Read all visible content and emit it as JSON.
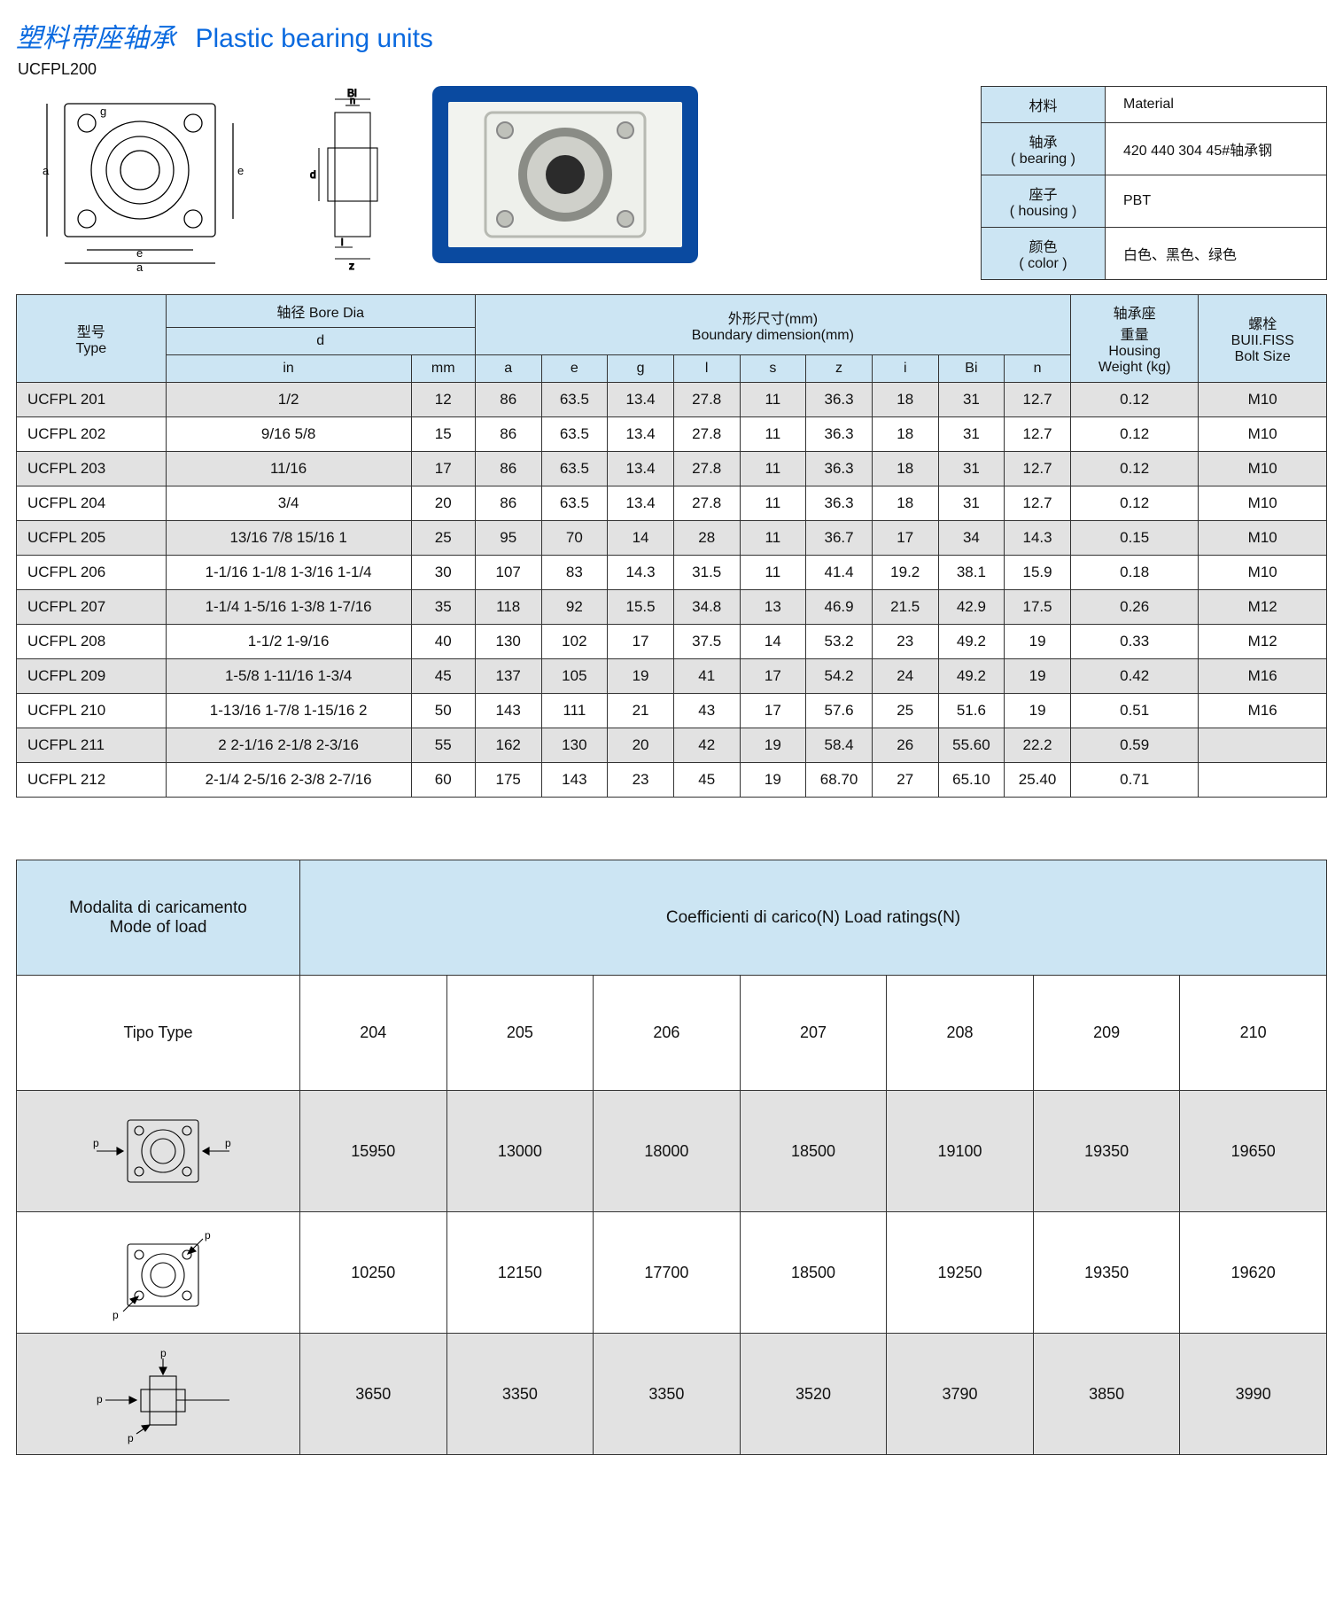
{
  "title": {
    "cn": "塑料带座轴承",
    "en": "Plastic bearing units"
  },
  "subtype": "UCFPL200",
  "material_table": {
    "head_cn": "材料",
    "head_en": "Material",
    "rows": [
      {
        "lab_cn": "轴承",
        "lab_en": "( bearing )",
        "val": "420 440 304  45#轴承钢"
      },
      {
        "lab_cn": "座子",
        "lab_en": "( housing )",
        "val": "PBT"
      },
      {
        "lab_cn": "颜色",
        "lab_en": "( color )",
        "val": "白色、黑色、绿色"
      }
    ]
  },
  "spec_headers": {
    "type": "型号\nType",
    "bore": "轴径 Bore Dia",
    "bore_d": "d",
    "bore_in": "in",
    "bore_mm": "mm",
    "boundary_cn": "外形尺寸(mm)",
    "boundary_en": "Boundary dimension(mm)",
    "dims": [
      "a",
      "e",
      "g",
      "l",
      "s",
      "z",
      "i",
      "Bi",
      "n"
    ],
    "wt_cn": "轴承座\n重量",
    "wt_en": "Housing\nWeight (kg)",
    "bolt_cn": "螺栓",
    "bolt_en": "BUII.FISS\nBolt Size"
  },
  "spec_rows": [
    {
      "type": "UCFPL 201",
      "in": "1/2",
      "mm": "12",
      "a": "86",
      "e": "63.5",
      "g": "13.4",
      "l": "27.8",
      "s": "11",
      "z": "36.3",
      "i": "18",
      "bi": "31",
      "n": "12.7",
      "wt": "0.12",
      "bolt": "M10"
    },
    {
      "type": "UCFPL 202",
      "in": "9/16  5/8",
      "mm": "15",
      "a": "86",
      "e": "63.5",
      "g": "13.4",
      "l": "27.8",
      "s": "11",
      "z": "36.3",
      "i": "18",
      "bi": "31",
      "n": "12.7",
      "wt": "0.12",
      "bolt": "M10"
    },
    {
      "type": "UCFPL 203",
      "in": "11/16",
      "mm": "17",
      "a": "86",
      "e": "63.5",
      "g": "13.4",
      "l": "27.8",
      "s": "11",
      "z": "36.3",
      "i": "18",
      "bi": "31",
      "n": "12.7",
      "wt": "0.12",
      "bolt": "M10"
    },
    {
      "type": "UCFPL 204",
      "in": "3/4",
      "mm": "20",
      "a": "86",
      "e": "63.5",
      "g": "13.4",
      "l": "27.8",
      "s": "11",
      "z": "36.3",
      "i": "18",
      "bi": "31",
      "n": "12.7",
      "wt": "0.12",
      "bolt": "M10"
    },
    {
      "type": "UCFPL 205",
      "in": "13/16  7/8  15/16  1",
      "mm": "25",
      "a": "95",
      "e": "70",
      "g": "14",
      "l": "28",
      "s": "11",
      "z": "36.7",
      "i": "17",
      "bi": "34",
      "n": "14.3",
      "wt": "0.15",
      "bolt": "M10"
    },
    {
      "type": "UCFPL 206",
      "in": "1-1/16  1-1/8  1-3/16  1-1/4",
      "mm": "30",
      "a": "107",
      "e": "83",
      "g": "14.3",
      "l": "31.5",
      "s": "11",
      "z": "41.4",
      "i": "19.2",
      "bi": "38.1",
      "n": "15.9",
      "wt": "0.18",
      "bolt": "M10"
    },
    {
      "type": "UCFPL 207",
      "in": "1-1/4  1-5/16  1-3/8  1-7/16",
      "mm": "35",
      "a": "118",
      "e": "92",
      "g": "15.5",
      "l": "34.8",
      "s": "13",
      "z": "46.9",
      "i": "21.5",
      "bi": "42.9",
      "n": "17.5",
      "wt": "0.26",
      "bolt": "M12"
    },
    {
      "type": "UCFPL 208",
      "in": "1-1/2  1-9/16",
      "mm": "40",
      "a": "130",
      "e": "102",
      "g": "17",
      "l": "37.5",
      "s": "14",
      "z": "53.2",
      "i": "23",
      "bi": "49.2",
      "n": "19",
      "wt": "0.33",
      "bolt": "M12"
    },
    {
      "type": "UCFPL 209",
      "in": "1-5/8  1-11/16  1-3/4",
      "mm": "45",
      "a": "137",
      "e": "105",
      "g": "19",
      "l": "41",
      "s": "17",
      "z": "54.2",
      "i": "24",
      "bi": "49.2",
      "n": "19",
      "wt": "0.42",
      "bolt": "M16"
    },
    {
      "type": "UCFPL 210",
      "in": "1-13/16  1-7/8  1-15/16  2",
      "mm": "50",
      "a": "143",
      "e": "111",
      "g": "21",
      "l": "43",
      "s": "17",
      "z": "57.6",
      "i": "25",
      "bi": "51.6",
      "n": "19",
      "wt": "0.51",
      "bolt": "M16"
    },
    {
      "type": "UCFPL 211",
      "in": "2  2-1/16  2-1/8  2-3/16",
      "mm": "55",
      "a": "162",
      "e": "130",
      "g": "20",
      "l": "42",
      "s": "19",
      "z": "58.4",
      "i": "26",
      "bi": "55.60",
      "n": "22.2",
      "wt": "0.59",
      "bolt": ""
    },
    {
      "type": "UCFPL 212",
      "in": "2-1/4  2-5/16  2-3/8  2-7/16",
      "mm": "60",
      "a": "175",
      "e": "143",
      "g": "23",
      "l": "45",
      "s": "19",
      "z": "68.70",
      "i": "27",
      "bi": "65.10",
      "n": "25.40",
      "wt": "0.71",
      "bolt": ""
    }
  ],
  "load": {
    "mode_lab_it": "Modalita di caricamento",
    "mode_lab_en": "Mode of load",
    "coef_lab": "Coefficienti di carico(N) Load ratings(N)",
    "tipo_lab": "Tipo Type",
    "columns": [
      "204",
      "205",
      "206",
      "207",
      "208",
      "209",
      "210"
    ],
    "rows": [
      {
        "style": "axial",
        "vals": [
          "15950",
          "13000",
          "18000",
          "18500",
          "19100",
          "19350",
          "19650"
        ]
      },
      {
        "style": "diag",
        "vals": [
          "10250",
          "12150",
          "17700",
          "18500",
          "19250",
          "19350",
          "19620"
        ]
      },
      {
        "style": "side",
        "vals": [
          "3650",
          "3350",
          "3350",
          "3520",
          "3790",
          "3850",
          "3990"
        ]
      }
    ]
  },
  "colors": {
    "header_bg": "#cce5f3",
    "row_alt": "#e2e2e2",
    "border": "#333333",
    "title": "#0b6adf"
  }
}
